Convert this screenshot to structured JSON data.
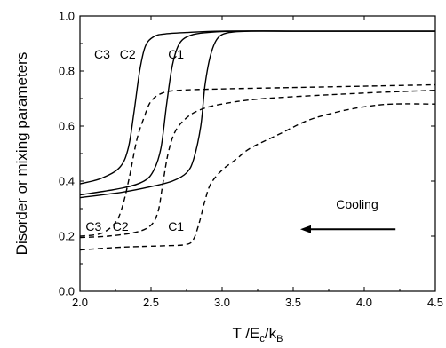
{
  "chart_data": {
    "type": "line",
    "title": "",
    "xlabel": {
      "main": "T /E",
      "sub1": "c",
      "mid": "/k",
      "sub2": "B"
    },
    "ylabel": "Disorder or mixing parameters",
    "xlim": [
      2.0,
      4.5
    ],
    "ylim": [
      0.0,
      1.0
    ],
    "x_ticks": [
      2.0,
      2.5,
      3.0,
      3.5,
      4.0,
      4.5
    ],
    "x_tick_labels": [
      "2.0",
      "2.5",
      "3.0",
      "3.5",
      "4.0",
      "4.5"
    ],
    "y_ticks": [
      0.0,
      0.2,
      0.4,
      0.6,
      0.8,
      1.0
    ],
    "y_tick_labels": [
      "0.0",
      "0.2",
      "0.4",
      "0.6",
      "0.8",
      "1.0"
    ],
    "grid": false,
    "legend": "none",
    "series": [
      {
        "name": "C1",
        "style": "solid",
        "x": [
          2.0,
          2.3,
          2.5,
          2.65,
          2.75,
          2.8,
          2.85,
          2.88,
          2.92,
          2.97,
          3.05,
          3.2,
          3.5,
          4.0,
          4.5
        ],
        "y": [
          0.34,
          0.36,
          0.38,
          0.4,
          0.43,
          0.48,
          0.6,
          0.75,
          0.86,
          0.92,
          0.94,
          0.945,
          0.945,
          0.945,
          0.945
        ]
      },
      {
        "name": "C2",
        "style": "solid",
        "x": [
          2.0,
          2.3,
          2.45,
          2.52,
          2.57,
          2.61,
          2.65,
          2.7,
          2.78,
          2.9,
          3.1,
          3.5,
          4.5
        ],
        "y": [
          0.35,
          0.375,
          0.4,
          0.44,
          0.52,
          0.68,
          0.82,
          0.9,
          0.93,
          0.94,
          0.945,
          0.945,
          0.945
        ]
      },
      {
        "name": "C3",
        "style": "solid",
        "x": [
          2.0,
          2.15,
          2.28,
          2.34,
          2.38,
          2.42,
          2.46,
          2.52,
          2.6,
          2.75,
          3.0,
          3.5,
          4.5
        ],
        "y": [
          0.39,
          0.41,
          0.45,
          0.52,
          0.65,
          0.8,
          0.89,
          0.925,
          0.935,
          0.94,
          0.945,
          0.945,
          0.945
        ]
      },
      {
        "name": "C1",
        "style": "dashed",
        "x": [
          2.0,
          2.3,
          2.6,
          2.75,
          2.8,
          2.84,
          2.88,
          2.92,
          3.0,
          3.1,
          3.2,
          3.4,
          3.6,
          3.8,
          4.0,
          4.2,
          4.5
        ],
        "y": [
          0.15,
          0.16,
          0.165,
          0.17,
          0.19,
          0.25,
          0.33,
          0.39,
          0.44,
          0.48,
          0.52,
          0.57,
          0.62,
          0.65,
          0.67,
          0.68,
          0.68
        ]
      },
      {
        "name": "C2",
        "style": "dashed",
        "x": [
          2.0,
          2.2,
          2.4,
          2.5,
          2.55,
          2.58,
          2.62,
          2.67,
          2.75,
          2.85,
          3.0,
          3.3,
          4.0,
          4.5
        ],
        "y": [
          0.195,
          0.2,
          0.215,
          0.24,
          0.29,
          0.38,
          0.5,
          0.58,
          0.63,
          0.66,
          0.68,
          0.7,
          0.72,
          0.73
        ]
      },
      {
        "name": "C3",
        "style": "dashed",
        "x": [
          2.0,
          2.15,
          2.25,
          2.3,
          2.35,
          2.4,
          2.45,
          2.5,
          2.58,
          2.7,
          3.0,
          3.5,
          4.0,
          4.5
        ],
        "y": [
          0.2,
          0.21,
          0.25,
          0.31,
          0.42,
          0.55,
          0.63,
          0.69,
          0.72,
          0.73,
          0.735,
          0.74,
          0.745,
          0.75
        ]
      }
    ],
    "curve_labels": [
      {
        "text": "C3",
        "x": 2.1,
        "y": 0.845
      },
      {
        "text": "C2",
        "x": 2.28,
        "y": 0.845
      },
      {
        "text": "C1",
        "x": 2.62,
        "y": 0.845
      },
      {
        "text": "C3",
        "x": 2.04,
        "y": 0.22
      },
      {
        "text": "C2",
        "x": 2.23,
        "y": 0.22
      },
      {
        "text": "C1",
        "x": 2.62,
        "y": 0.22
      }
    ],
    "annotation": {
      "text": "Cooling",
      "text_x": 3.95,
      "text_y": 0.3,
      "arrow_from_x": 4.22,
      "arrow_to_x": 3.55,
      "arrow_y": 0.225
    }
  }
}
